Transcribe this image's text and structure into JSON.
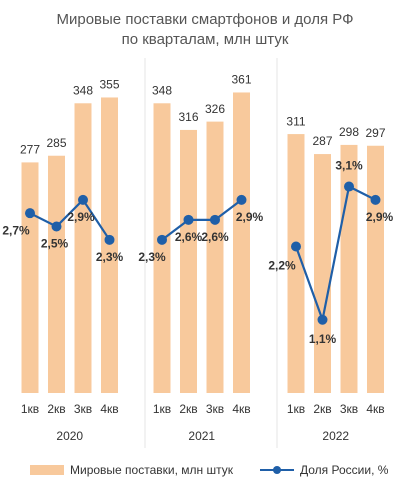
{
  "chart_data": {
    "type": "bar-line",
    "title": [
      "Мировые поставки смартфонов и доля РФ",
      "по кварталам, млн штук"
    ],
    "categories": [
      "1кв",
      "2кв",
      "3кв",
      "4кв",
      "1кв",
      "2кв",
      "3кв",
      "4кв",
      "1кв",
      "2кв",
      "3кв",
      "4кв"
    ],
    "groups": [
      "2020",
      "2021",
      "2022"
    ],
    "series": [
      {
        "name": "Мировые поставки, млн штук",
        "type": "bar",
        "color": "#f8c99c",
        "values": [
          277,
          285,
          348,
          355,
          348,
          316,
          326,
          361,
          311,
          287,
          298,
          297
        ]
      },
      {
        "name": "Доля России, %",
        "type": "line",
        "axis": "y2",
        "color": "#1f5fa8",
        "values": [
          2.7,
          2.5,
          2.9,
          2.3,
          2.3,
          2.6,
          2.6,
          2.9,
          2.2,
          1.1,
          3.1,
          2.9
        ],
        "value_labels": [
          "2,7%",
          "2,5%",
          "2,9%",
          "2,3%",
          "2,3%",
          "2,6%",
          "2,6%",
          "2,9%",
          "2,2%",
          "1,1%",
          "3,1%",
          "2,9%"
        ]
      }
    ],
    "ylim": [
      0,
      400
    ],
    "y2lim": [
      0,
      5
    ],
    "legend": "bottom"
  }
}
